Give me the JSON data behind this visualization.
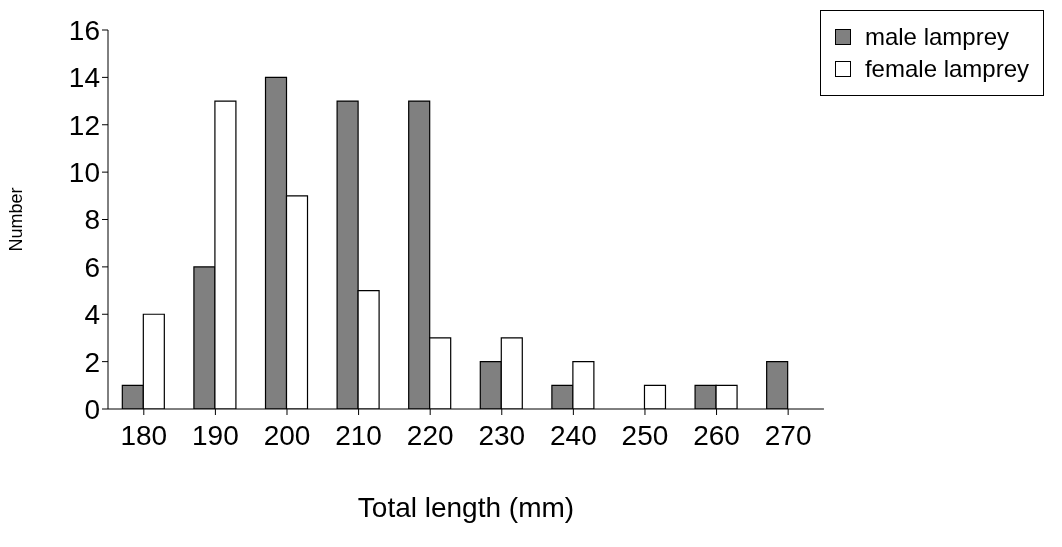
{
  "chart_data": {
    "type": "bar",
    "xlabel": "Total length (mm)",
    "ylabel": "Number",
    "categories": [
      "180",
      "190",
      "200",
      "210",
      "220",
      "230",
      "240",
      "250",
      "260",
      "270"
    ],
    "series": [
      {
        "name": "male lamprey",
        "color": "#808080",
        "values": [
          1,
          6,
          14,
          13,
          13,
          2,
          1,
          0,
          1,
          2
        ]
      },
      {
        "name": "female lamprey",
        "color": "#ffffff",
        "values": [
          4,
          13,
          9,
          5,
          3,
          3,
          2,
          1,
          1,
          0
        ]
      }
    ],
    "ylim": [
      0,
      16
    ],
    "yticks": [
      0,
      2,
      4,
      6,
      8,
      10,
      12,
      14,
      16
    ],
    "grid": false,
    "legend": "top right"
  }
}
